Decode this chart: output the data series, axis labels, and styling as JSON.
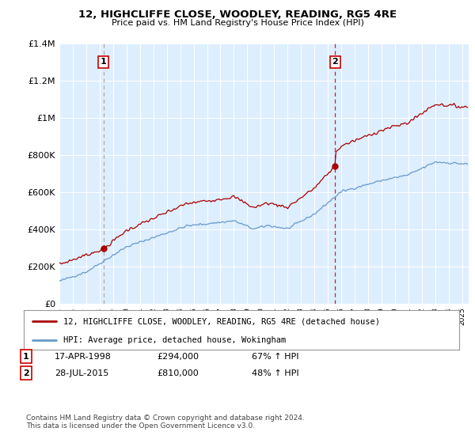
{
  "title": "12, HIGHCLIFFE CLOSE, WOODLEY, READING, RG5 4RE",
  "subtitle": "Price paid vs. HM Land Registry's House Price Index (HPI)",
  "legend_label_red": "12, HIGHCLIFFE CLOSE, WOODLEY, READING, RG5 4RE (detached house)",
  "legend_label_blue": "HPI: Average price, detached house, Wokingham",
  "transaction1_date": "17-APR-1998",
  "transaction1_price": "£294,000",
  "transaction1_hpi": "67% ↑ HPI",
  "transaction2_date": "28-JUL-2015",
  "transaction2_price": "£810,000",
  "transaction2_hpi": "48% ↑ HPI",
  "footnote": "Contains HM Land Registry data © Crown copyright and database right 2024.\nThis data is licensed under the Open Government Licence v3.0.",
  "ylim": [
    0,
    1400000
  ],
  "yticks": [
    0,
    200000,
    400000,
    600000,
    800000,
    1000000,
    1200000,
    1400000
  ],
  "ytick_labels": [
    "£0",
    "£200K",
    "£400K",
    "£600K",
    "£800K",
    "£1M",
    "£1.2M",
    "£1.4M"
  ],
  "red_color": "#aa0000",
  "blue_color": "#6699cc",
  "dashed_color": "#aaaaaa",
  "plot_bg_color": "#ddeeff",
  "background_color": "#ffffff",
  "grid_color": "#ffffff",
  "transaction1_x": 1998.29,
  "transaction2_x": 2015.55
}
